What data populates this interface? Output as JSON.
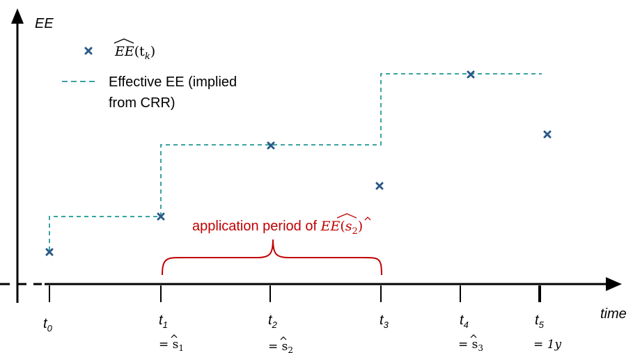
{
  "axes": {
    "y_label": "EE",
    "x_label": "time"
  },
  "legend": {
    "marker_label_base": "EE",
    "marker_label_arg": "(t",
    "marker_label_sub": "k",
    "marker_label_close": ")",
    "line_label_line1": "Effective EE (implied",
    "line_label_line2": "from CRR)"
  },
  "annotation": {
    "text": "application period of ",
    "math_base": "EE",
    "math_arg_open": "(",
    "math_arg_var": "s",
    "math_arg_sub": "2",
    "math_arg_close": ")"
  },
  "ticks": [
    {
      "t": "t",
      "sub": "0",
      "eq": ""
    },
    {
      "t": "t",
      "sub": "1",
      "eq": "= s",
      "eq_sub": "1"
    },
    {
      "t": "t",
      "sub": "2",
      "eq": "= s",
      "eq_sub": "2"
    },
    {
      "t": "t",
      "sub": "3",
      "eq": ""
    },
    {
      "t": "t",
      "sub": "4",
      "eq": "= s",
      "eq_sub": "3"
    },
    {
      "t": "t",
      "sub": "5",
      "eq": "= 1y",
      "eq_sub": ""
    }
  ],
  "colors": {
    "marker": "#2b5a88",
    "effective_line": "#3aa3a3",
    "annotation": "#c00000",
    "axis": "#000000"
  }
}
